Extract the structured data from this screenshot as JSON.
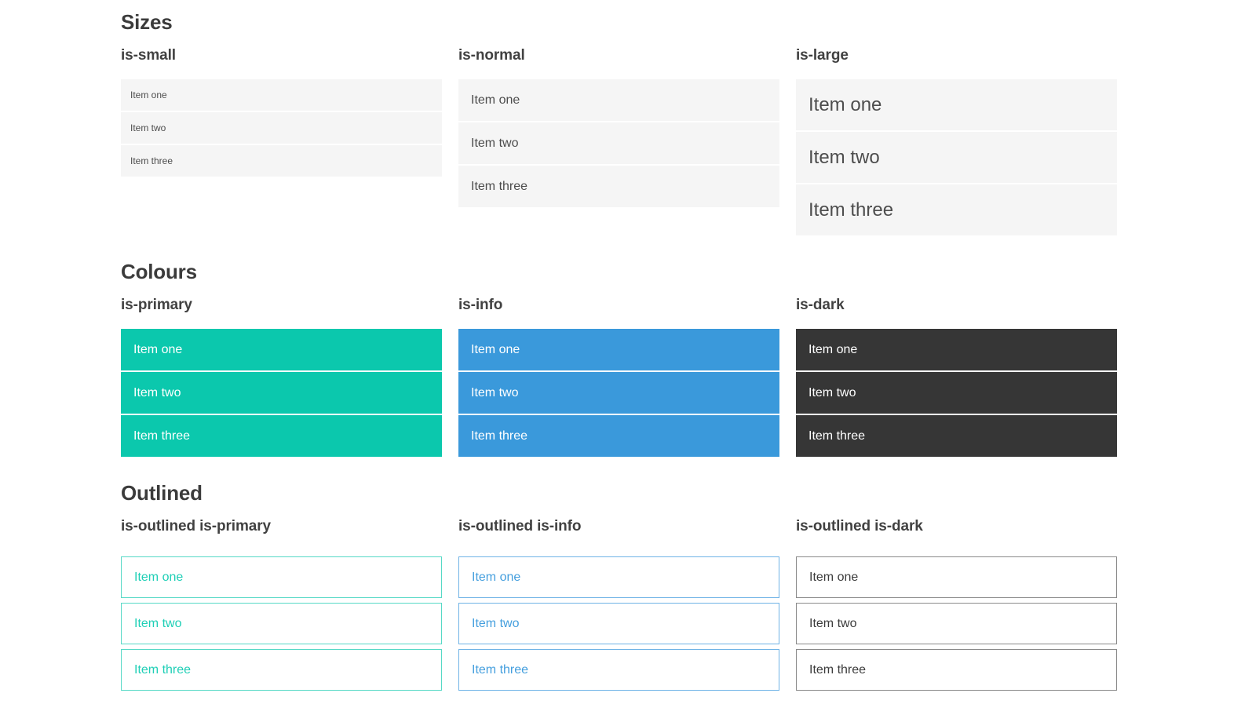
{
  "colors": {
    "primary": "#0bc8ad",
    "info": "#3a99db",
    "dark": "#363636",
    "item_bg": "#f5f5f5",
    "item_text": "#4d4d4d",
    "heading": "#3b3b3b"
  },
  "sections": [
    {
      "title": "Sizes",
      "groups": [
        {
          "label": "is-small",
          "items": [
            "Item one",
            "Item two",
            "Item three"
          ]
        },
        {
          "label": "is-normal",
          "items": [
            "Item one",
            "Item two",
            "Item three"
          ]
        },
        {
          "label": "is-large",
          "items": [
            "Item one",
            "Item two",
            "Item three"
          ]
        }
      ]
    },
    {
      "title": "Colours",
      "groups": [
        {
          "label": "is-primary",
          "items": [
            "Item one",
            "Item two",
            "Item three"
          ]
        },
        {
          "label": "is-info",
          "items": [
            "Item one",
            "Item two",
            "Item three"
          ]
        },
        {
          "label": "is-dark",
          "items": [
            "Item one",
            "Item two",
            "Item three"
          ]
        }
      ]
    },
    {
      "title": "Outlined",
      "groups": [
        {
          "label": "is-outlined is-primary",
          "items": [
            "Item one",
            "Item two",
            "Item three"
          ]
        },
        {
          "label": "is-outlined is-info",
          "items": [
            "Item one",
            "Item two",
            "Item three"
          ]
        },
        {
          "label": "is-outlined is-dark",
          "items": [
            "Item one",
            "Item two",
            "Item three"
          ]
        }
      ]
    }
  ]
}
